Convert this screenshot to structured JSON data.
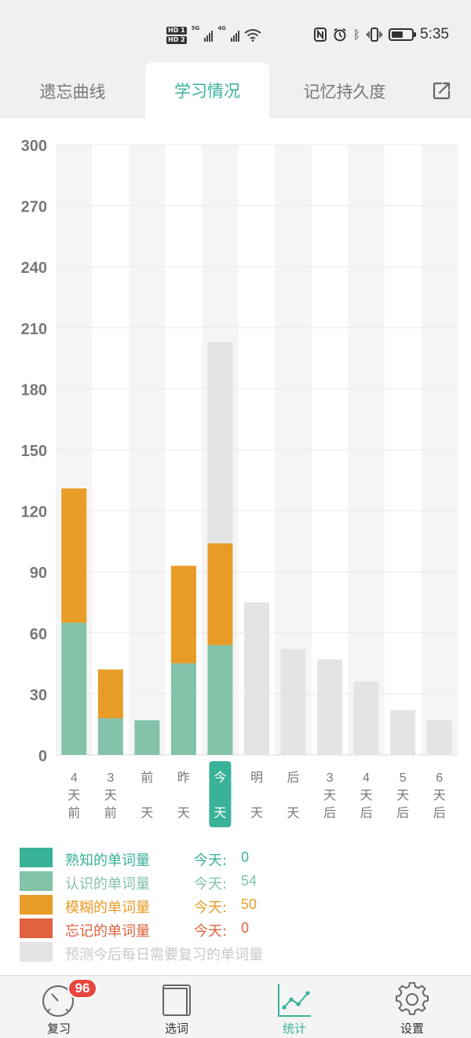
{
  "status_bar": {
    "sim1": "HD 1",
    "sim2": "HD 2",
    "net1": "5G",
    "net2": "4G",
    "time": "5:35",
    "battery_level": 0.6,
    "icons": [
      "nfc-icon",
      "alarm-icon",
      "bluetooth-icon",
      "vibrate-icon",
      "battery-icon",
      "wifi-icon"
    ]
  },
  "tabs": [
    {
      "label": "遗忘曲线"
    },
    {
      "label": "学习情况"
    },
    {
      "label": "记忆持久度"
    }
  ],
  "active_tab": 1,
  "colors": {
    "accent": "#3ab29a",
    "familiar": "#3ab29a",
    "known": "#82c3aa",
    "fuzzy": "#e89c28",
    "forgot": "#e0623e",
    "predicted": "#e4e4e4"
  },
  "chart_data": {
    "type": "bar",
    "stacked": true,
    "ylim": [
      0,
      300
    ],
    "yticks": [
      "0",
      "30",
      "60",
      "90",
      "120",
      "150",
      "180",
      "210",
      "240",
      "270",
      "300"
    ],
    "categories": [
      "4天前",
      "3天前",
      "前天",
      "昨天",
      "今天",
      "明天",
      "后天",
      "3天后",
      "4天后",
      "5天后",
      "6天后"
    ],
    "highlight_index": 4,
    "series": [
      {
        "name": "熟知的单词量",
        "color": "#3ab29a",
        "values": [
          0,
          0,
          0,
          0,
          0,
          0,
          0,
          0,
          0,
          0,
          0
        ]
      },
      {
        "name": "认识的单词量",
        "color": "#82c3aa",
        "values": [
          65,
          18,
          17,
          45,
          54,
          0,
          0,
          0,
          0,
          0,
          0
        ]
      },
      {
        "name": "模糊的单词量",
        "color": "#e89c28",
        "values": [
          66,
          24,
          0,
          48,
          50,
          0,
          0,
          0,
          0,
          0,
          0
        ]
      },
      {
        "name": "忘记的单词量",
        "color": "#e0623e",
        "values": [
          0,
          0,
          0,
          0,
          0,
          0,
          0,
          0,
          0,
          0,
          0
        ]
      },
      {
        "name": "预测今后每日需要复习的单词量",
        "color": "#e4e4e4",
        "values": [
          0,
          0,
          0,
          0,
          99,
          75,
          52,
          47,
          36,
          22,
          17
        ]
      }
    ],
    "grid": true
  },
  "legend": [
    {
      "name": "熟知的单词量",
      "prefix": "今天:",
      "value": "0",
      "color": "#3ab29a"
    },
    {
      "name": "认识的单词量",
      "prefix": "今天:",
      "value": "54",
      "color": "#82c3aa"
    },
    {
      "name": "模糊的单词量",
      "prefix": "今天:",
      "value": "50",
      "color": "#e89c28"
    },
    {
      "name": "忘记的单词量",
      "prefix": "今天:",
      "value": "0",
      "color": "#e0623e"
    },
    {
      "name": "预测今后每日需要复习的单词量",
      "prefix": "",
      "value": "",
      "color": "#e4e4e4",
      "text_color": "#c8c8c8"
    }
  ],
  "bottom_nav": [
    {
      "label": "复习",
      "icon": "stopwatch-icon",
      "badge": "96"
    },
    {
      "label": "选词",
      "icon": "book-icon",
      "badge": ""
    },
    {
      "label": "统计",
      "icon": "line-chart-icon",
      "badge": ""
    },
    {
      "label": "设置",
      "icon": "gear-icon",
      "badge": ""
    }
  ],
  "active_nav": 2
}
